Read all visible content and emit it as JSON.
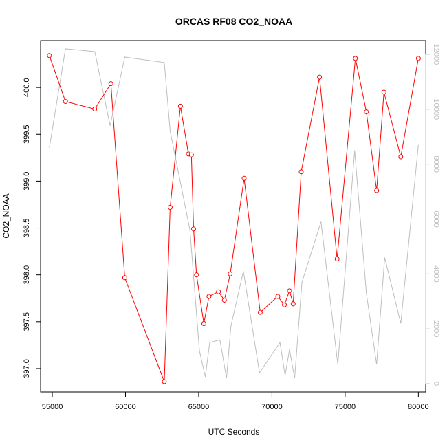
{
  "chart_data": {
    "type": "line",
    "title": "ORCAS RF08 CO2_NOAA",
    "xlabel": "UTC Seconds",
    "ylabel": "CO2_NOAA",
    "xlim": [
      54200,
      80500
    ],
    "ylim": [
      396.75,
      400.5
    ],
    "y2lim": [
      -300,
      12500
    ],
    "xticks": [
      55000,
      60000,
      65000,
      70000,
      75000,
      80000
    ],
    "yticks": [
      "397.0",
      "397.5",
      "398.0",
      "398.5",
      "399.0",
      "399.5",
      "400.0"
    ],
    "y2ticks": [
      "0",
      "2000",
      "4000",
      "6000",
      "8000",
      "10000",
      "12000"
    ],
    "colors": {
      "co2": "#ff0000",
      "secondary": "#bebebe",
      "axis": "#000000"
    },
    "series": [
      {
        "x": [
          54800,
          55900,
          57900,
          59000,
          59950,
          62650,
          63050,
          63750,
          64300,
          64500,
          64650,
          64850,
          65350,
          65700,
          66350,
          66750,
          67150,
          68100,
          69200,
          70400,
          70850,
          71200,
          71450,
          72000,
          73250,
          74450,
          75700,
          76450,
          77150,
          77650,
          78800,
          80000
        ],
        "values": [
          400.34,
          399.85,
          399.77,
          400.04,
          397.97,
          396.86,
          398.72,
          399.8,
          399.29,
          399.28,
          398.49,
          398.0,
          397.48,
          397.77,
          397.82,
          397.73,
          398.01,
          399.03,
          397.6,
          397.77,
          397.68,
          397.83,
          397.69,
          399.1,
          400.11,
          398.17,
          400.31,
          399.74,
          398.9,
          399.95,
          399.26,
          400.31
        ]
      },
      {
        "axis": "right",
        "x": [
          54800,
          55900,
          57900,
          58950,
          59950,
          62650,
          63050,
          64400,
          65050,
          65450,
          65750,
          66450,
          66900,
          67200,
          68050,
          69150,
          70550,
          70900,
          71200,
          71550,
          72050,
          73350,
          74500,
          75650,
          76450,
          77150,
          77700,
          78800,
          80000
        ],
        "values": [
          8600,
          12200,
          12100,
          9400,
          11900,
          11700,
          9200,
          5600,
          1200,
          250,
          1500,
          1600,
          200,
          2100,
          4100,
          400,
          1500,
          300,
          1250,
          200,
          3700,
          5900,
          700,
          8500,
          3300,
          700,
          4600,
          2200,
          8700
        ]
      }
    ]
  }
}
